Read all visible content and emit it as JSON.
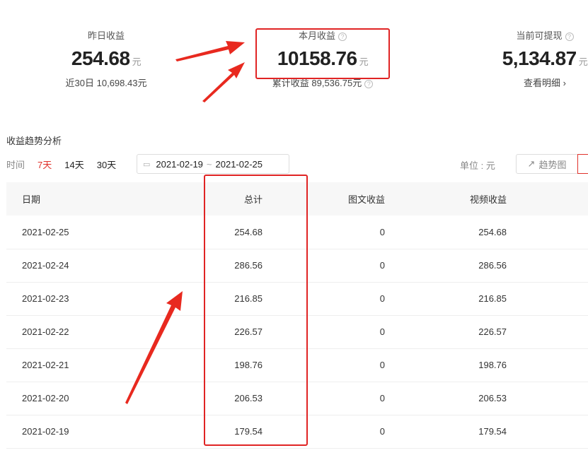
{
  "stats": [
    {
      "label": "昨日收益",
      "value": "254.68",
      "unit": "元",
      "sub": "近30日 10,698.43元",
      "help": false
    },
    {
      "label": "本月收益",
      "value": "10158.76",
      "unit": "元",
      "sub": "累计收益 89,536.75元",
      "help": true
    },
    {
      "label": "当前可提现",
      "value": "5,134.87",
      "unit": "元",
      "sub": "查看明细 ›",
      "help": true
    }
  ],
  "section_title": "收益趋势分析",
  "filters": {
    "label": "时间",
    "options": [
      "7天",
      "14天",
      "30天"
    ],
    "active": "7天"
  },
  "date_range": {
    "start": "2021-02-19",
    "sep": "~",
    "end": "2021-02-25"
  },
  "unit_label": "单位 : 元",
  "trend_button": "趋势图",
  "table": {
    "headers": [
      "日期",
      "总计",
      "图文收益",
      "视频收益"
    ],
    "rows": [
      [
        "2021-02-25",
        "254.68",
        "0",
        "254.68"
      ],
      [
        "2021-02-24",
        "286.56",
        "0",
        "286.56"
      ],
      [
        "2021-02-23",
        "216.85",
        "0",
        "216.85"
      ],
      [
        "2021-02-22",
        "226.57",
        "0",
        "226.57"
      ],
      [
        "2021-02-21",
        "198.76",
        "0",
        "198.76"
      ],
      [
        "2021-02-20",
        "206.53",
        "0",
        "206.53"
      ],
      [
        "2021-02-19",
        "179.54",
        "0",
        "179.54"
      ]
    ]
  },
  "colors": {
    "highlight": "#e02424",
    "accent": "#e0312a"
  }
}
